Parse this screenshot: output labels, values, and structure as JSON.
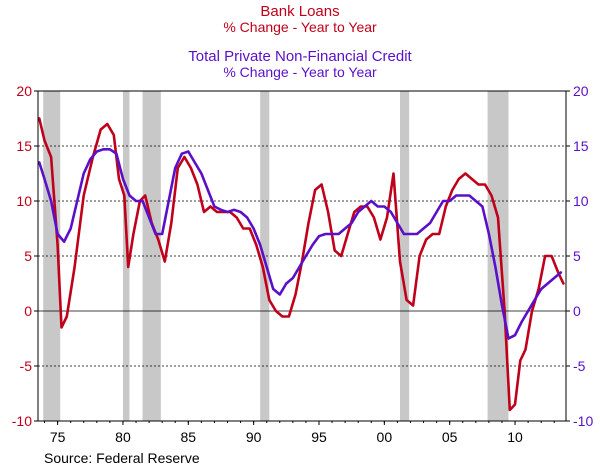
{
  "titles": {
    "line1": "Bank Loans",
    "line2": "% Change - Year to Year",
    "line3": "Total Private Non-Financial Credit",
    "line4": "% Change - Year to Year"
  },
  "source": "Source: Federal Reserve",
  "colors": {
    "bank_loans": "#c0001a",
    "credit": "#5a10c8",
    "recession": "#c8c8c8",
    "left_axis": "#c0001a",
    "right_axis": "#5a10c8"
  },
  "chart_data": {
    "type": "line",
    "xlim": [
      1973.5,
      2013.9
    ],
    "ylim": [
      -10,
      20
    ],
    "y_ticks": [
      -10,
      -5,
      0,
      5,
      10,
      15,
      20
    ],
    "y_tick_labels": [
      "-10",
      "-5",
      "0",
      "5",
      "10",
      "15",
      "20"
    ],
    "x_ticks": [
      1975,
      1980,
      1985,
      1990,
      1995,
      2000,
      2005,
      2010
    ],
    "x_tick_labels": [
      "75",
      "80",
      "85",
      "90",
      "95",
      "00",
      "05",
      "10"
    ],
    "gridlines": [
      -5,
      5,
      15
    ],
    "recessions": [
      [
        1973.9,
        1975.2
      ],
      [
        1980.0,
        1980.5
      ],
      [
        1981.5,
        1982.9
      ],
      [
        1990.5,
        1991.2
      ],
      [
        2001.2,
        2001.9
      ],
      [
        2007.9,
        2009.5
      ]
    ],
    "series": [
      {
        "name": "Bank Loans",
        "x": [
          1973.6,
          1974.0,
          1974.5,
          1975.0,
          1975.3,
          1975.7,
          1976.3,
          1977.0,
          1977.7,
          1978.3,
          1978.8,
          1979.3,
          1979.7,
          1980.1,
          1980.4,
          1980.8,
          1981.3,
          1981.7,
          1982.2,
          1982.7,
          1983.2,
          1983.7,
          1984.2,
          1984.7,
          1985.2,
          1985.7,
          1986.2,
          1986.7,
          1987.2,
          1987.7,
          1988.2,
          1988.7,
          1989.2,
          1989.7,
          1990.2,
          1990.7,
          1991.2,
          1991.7,
          1992.2,
          1992.7,
          1993.2,
          1993.7,
          1994.2,
          1994.7,
          1995.2,
          1995.7,
          1996.2,
          1996.7,
          1997.2,
          1997.7,
          1998.2,
          1998.7,
          1999.2,
          1999.7,
          2000.2,
          2000.7,
          2001.2,
          2001.7,
          2002.2,
          2002.7,
          2003.2,
          2003.7,
          2004.2,
          2004.7,
          2005.2,
          2005.7,
          2006.2,
          2006.7,
          2007.2,
          2007.7,
          2008.2,
          2008.7,
          2009.2,
          2009.6,
          2010.0,
          2010.4,
          2010.8,
          2011.3,
          2011.8,
          2012.3,
          2012.8,
          2013.3,
          2013.7
        ],
        "y": [
          17.5,
          15.5,
          14.0,
          6.0,
          -1.5,
          -0.5,
          4.0,
          10.5,
          14.0,
          16.5,
          17.0,
          16.0,
          12.0,
          10.5,
          4.0,
          7.0,
          10.0,
          10.5,
          8.0,
          6.5,
          4.5,
          8.0,
          13.0,
          14.0,
          13.0,
          11.5,
          9.0,
          9.5,
          9.0,
          9.0,
          9.0,
          8.5,
          7.5,
          7.5,
          6.0,
          4.0,
          1.0,
          0.0,
          -0.5,
          -0.5,
          1.5,
          4.5,
          8.0,
          11.0,
          11.5,
          9.0,
          5.5,
          5.0,
          7.0,
          9.0,
          9.5,
          9.5,
          8.5,
          6.5,
          8.5,
          12.5,
          4.5,
          1.0,
          0.5,
          5.0,
          6.5,
          7.0,
          7.0,
          9.5,
          11.0,
          12.0,
          12.5,
          12.0,
          11.5,
          11.5,
          10.5,
          8.5,
          0.0,
          -9.0,
          -8.5,
          -4.5,
          -3.5,
          0.0,
          2.0,
          5.0,
          5.0,
          3.5,
          2.5
        ]
      },
      {
        "name": "Total Private Non-Financial Credit",
        "x": [
          1973.6,
          1974.0,
          1974.5,
          1975.0,
          1975.5,
          1976.0,
          1976.5,
          1977.0,
          1977.5,
          1978.0,
          1978.5,
          1979.0,
          1979.5,
          1980.0,
          1980.5,
          1981.0,
          1981.5,
          1982.0,
          1982.5,
          1983.0,
          1983.5,
          1984.0,
          1984.5,
          1985.0,
          1985.5,
          1986.0,
          1986.5,
          1987.0,
          1987.5,
          1988.0,
          1988.5,
          1989.0,
          1989.5,
          1990.0,
          1990.5,
          1991.0,
          1991.5,
          1992.0,
          1992.5,
          1993.0,
          1993.5,
          1994.0,
          1994.5,
          1995.0,
          1995.5,
          1996.0,
          1996.5,
          1997.0,
          1997.5,
          1998.0,
          1998.5,
          1999.0,
          1999.5,
          2000.0,
          2000.5,
          2001.0,
          2001.5,
          2002.0,
          2002.5,
          2003.0,
          2003.5,
          2004.0,
          2004.5,
          2005.0,
          2005.5,
          2006.0,
          2006.5,
          2007.0,
          2007.5,
          2008.0,
          2008.5,
          2009.0,
          2009.5,
          2010.0,
          2010.5,
          2011.0,
          2011.5,
          2012.0,
          2012.5,
          2013.0,
          2013.5
        ],
        "y": [
          13.5,
          12.0,
          10.0,
          7.0,
          6.3,
          7.5,
          10.0,
          12.5,
          13.8,
          14.5,
          14.7,
          14.7,
          14.3,
          12.0,
          10.5,
          10.0,
          10.0,
          8.5,
          7.0,
          7.0,
          10.0,
          13.0,
          14.3,
          14.5,
          13.5,
          12.5,
          11.0,
          9.5,
          9.2,
          9.0,
          9.2,
          9.0,
          8.5,
          7.5,
          6.0,
          4.0,
          2.0,
          1.5,
          2.5,
          3.0,
          4.0,
          5.0,
          6.0,
          6.8,
          7.0,
          7.0,
          7.0,
          7.5,
          8.0,
          9.0,
          9.5,
          10.0,
          9.5,
          9.5,
          9.0,
          8.0,
          7.0,
          7.0,
          7.0,
          7.5,
          8.0,
          9.0,
          10.0,
          10.0,
          10.5,
          10.5,
          10.5,
          10.0,
          9.5,
          7.0,
          4.0,
          0.5,
          -2.5,
          -2.2,
          -1.0,
          0.0,
          1.0,
          2.0,
          2.5,
          3.0,
          3.5
        ]
      }
    ]
  }
}
